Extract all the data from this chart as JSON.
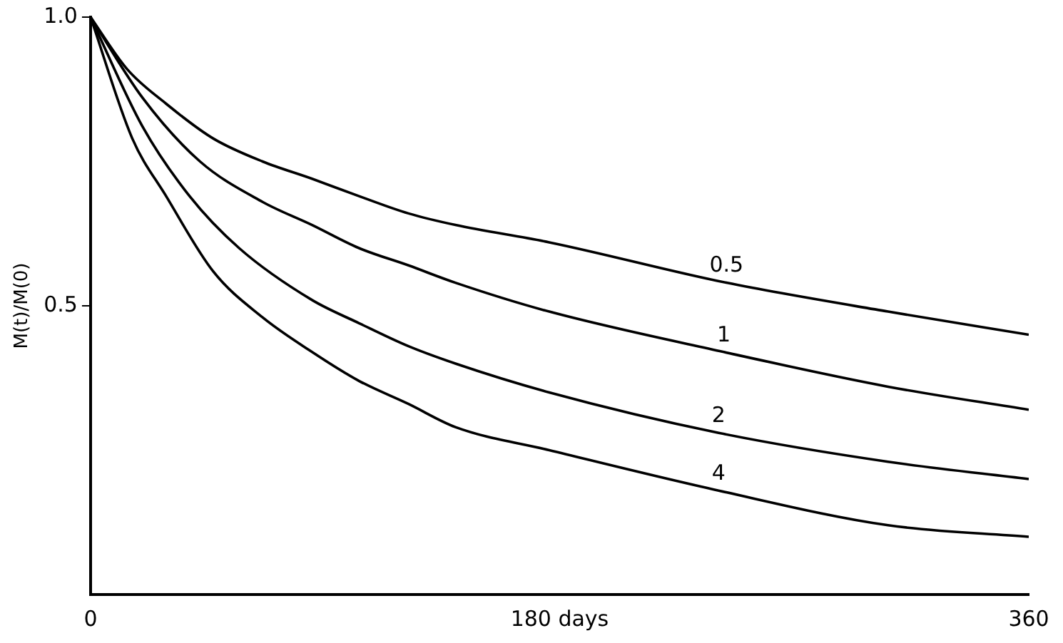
{
  "chart_data": {
    "type": "line",
    "ylabel": "M(t)/M(0)",
    "xlim": [
      0,
      360
    ],
    "ylim": [
      0,
      1
    ],
    "xticks": [
      0,
      {
        "value": 180,
        "label": "180 days"
      },
      360
    ],
    "yticks": [
      {
        "value": 0.5,
        "label": "0.5"
      },
      {
        "value": 1,
        "label": "1.0"
      }
    ],
    "grid": false,
    "legend": false,
    "marker": "none",
    "line_style": "solid",
    "series": [
      {
        "name": "0.5",
        "color": "#000000",
        "x": [
          0,
          14,
          29,
          47,
          66,
          85,
          103,
          122,
          140,
          176,
          244,
          306,
          360
        ],
        "values": [
          1,
          0.91,
          0.85,
          0.79,
          0.75,
          0.72,
          0.69,
          0.66,
          0.64,
          0.61,
          0.54,
          0.49,
          0.45
        ]
      },
      {
        "name": "1",
        "color": "#000000",
        "x": [
          0,
          20,
          42,
          66,
          85,
          103,
          122,
          140,
          176,
          243,
          306,
          360
        ],
        "values": [
          1,
          0.86,
          0.75,
          0.68,
          0.64,
          0.6,
          0.57,
          0.54,
          0.49,
          0.42,
          0.36,
          0.32
        ]
      },
      {
        "name": "2",
        "color": "#000000",
        "x": [
          0,
          20,
          38,
          57,
          85,
          103,
          122,
          140,
          176,
          241,
          306,
          360
        ],
        "values": [
          1,
          0.81,
          0.69,
          0.6,
          0.51,
          0.47,
          0.43,
          0.4,
          0.35,
          0.28,
          0.23,
          0.2
        ]
      },
      {
        "name": "4",
        "color": "#000000",
        "x": [
          0,
          16,
          29,
          47,
          66,
          85,
          103,
          122,
          140,
          176,
          241,
          306,
          360
        ],
        "values": [
          1,
          0.79,
          0.69,
          0.56,
          0.48,
          0.42,
          0.37,
          0.33,
          0.29,
          0.25,
          0.18,
          0.12,
          0.1
        ]
      }
    ]
  }
}
